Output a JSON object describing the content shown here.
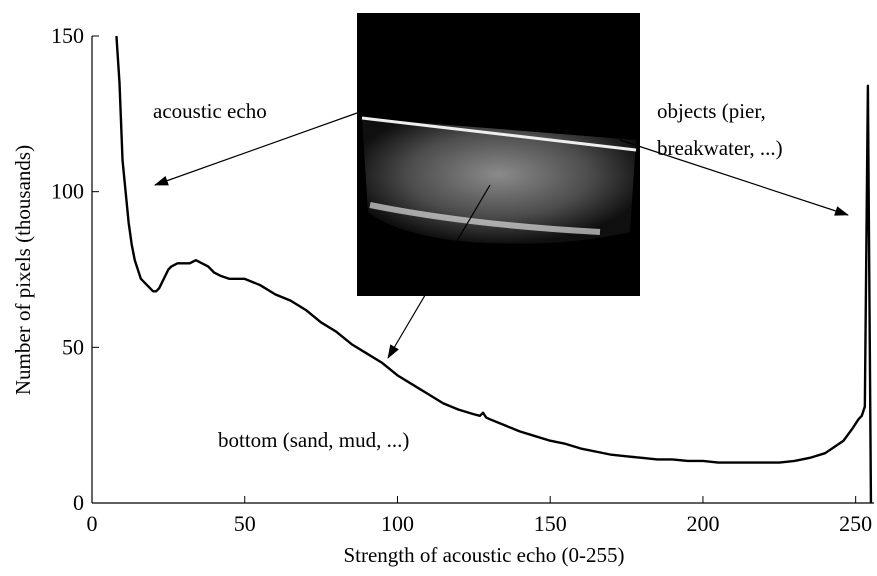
{
  "chart_data": {
    "type": "line",
    "xlabel": "Strength of acoustic echo (0-255)",
    "ylabel": "Number of pixels (thousands)",
    "annotations": [
      "acoustic echo",
      "objects (pier,",
      "breakwater, ...)",
      "bottom (sand, mud, ...)"
    ],
    "color": "#000000",
    "x": [
      8,
      9,
      10,
      11,
      12,
      13,
      14,
      15,
      16,
      17,
      18,
      19,
      20,
      21,
      22,
      23,
      24,
      25,
      26,
      28,
      30,
      32,
      34,
      36,
      38,
      40,
      42,
      45,
      50,
      55,
      60,
      65,
      70,
      75,
      80,
      85,
      90,
      95,
      100,
      105,
      110,
      115,
      120,
      125,
      127,
      128,
      129,
      130,
      135,
      140,
      145,
      150,
      155,
      160,
      165,
      170,
      175,
      180,
      185,
      190,
      195,
      200,
      205,
      210,
      215,
      220,
      225,
      230,
      235,
      240,
      243,
      246,
      249,
      251,
      252,
      253,
      254,
      255
    ],
    "values": [
      150,
      135,
      110,
      100,
      90,
      83,
      78,
      75,
      72,
      71,
      70,
      69,
      68,
      68,
      69,
      71,
      73,
      75,
      76,
      77,
      77,
      77,
      78,
      77,
      76,
      74,
      73,
      72,
      72,
      70,
      67,
      65,
      62,
      58,
      55,
      51,
      48,
      45,
      41,
      38,
      35,
      32,
      30,
      28.5,
      28,
      29,
      27.5,
      27,
      25,
      23,
      21.5,
      20,
      19,
      17.5,
      16.5,
      15.5,
      15,
      14.5,
      14,
      14,
      13.5,
      13.5,
      13,
      13,
      13,
      13,
      13,
      13.5,
      14.5,
      16,
      18,
      20,
      24,
      27,
      28,
      31,
      134,
      0
    ],
    "xlim": [
      0,
      256
    ],
    "ylim": [
      0,
      150
    ],
    "xticks": [
      0,
      50,
      100,
      150,
      200,
      250
    ],
    "yticks": [
      0,
      50,
      100,
      150
    ]
  }
}
